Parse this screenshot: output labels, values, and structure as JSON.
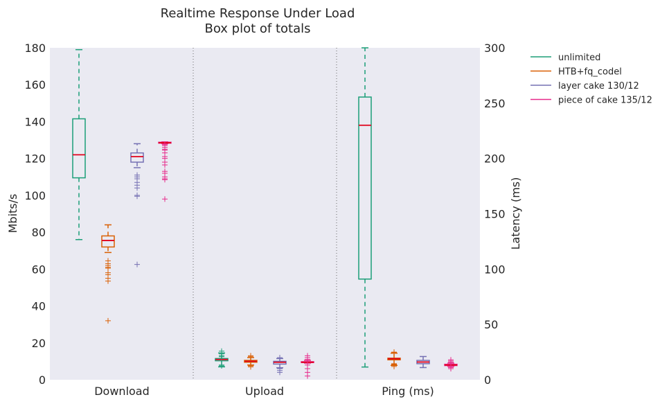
{
  "chart_data": {
    "type": "box",
    "title": "Realtime Response Under Load",
    "subtitle": "Box plot of totals",
    "ylabel_left": "Mbits/s",
    "ylabel_right": "Latency (ms)",
    "ylim_left": [
      0,
      180
    ],
    "ylim_right": [
      0,
      300
    ],
    "yticks_left": [
      0,
      20,
      40,
      60,
      80,
      100,
      120,
      140,
      160,
      180
    ],
    "yticks_right": [
      0,
      50,
      100,
      150,
      200,
      250,
      300
    ],
    "grid": false,
    "legend_position": "outside-right",
    "categories": [
      "Download",
      "Upload",
      "Ping (ms)"
    ],
    "series": [
      {
        "name": "unlimited",
        "color": "#1b9e77",
        "boxes": [
          {
            "category": "Download",
            "axis": "left",
            "whisker_low": 76,
            "q1": 109.5,
            "median": 122,
            "q3": 141.5,
            "whisker_high": 179,
            "outliers": []
          },
          {
            "category": "Upload",
            "axis": "left",
            "whisker_low": 7,
            "q1": 10.3,
            "median": 11,
            "q3": 11.5,
            "whisker_high": 14.5,
            "outliers": [
              15.5,
              14,
              13,
              12.5,
              8,
              7.5
            ]
          },
          {
            "category": "Ping (ms)",
            "axis": "right",
            "whisker_low": 11.5,
            "q1": 91,
            "median": 230,
            "q3": 255.5,
            "whisker_high": 300,
            "outliers": []
          }
        ]
      },
      {
        "name": "HTB+fq_codel",
        "color": "#d95f02",
        "boxes": [
          {
            "category": "Download",
            "axis": "left",
            "whisker_low": 69,
            "q1": 72,
            "median": 75.5,
            "q3": 78,
            "whisker_high": 84,
            "outliers": [
              64.5,
              63,
              62,
              61,
              60.5,
              58,
              57,
              55,
              53.5,
              32
            ]
          },
          {
            "category": "Upload",
            "axis": "left",
            "whisker_low": 8,
            "q1": 9.5,
            "median": 10,
            "q3": 10.5,
            "whisker_high": 12,
            "outliers": [
              13,
              12.5,
              7.5,
              7
            ]
          },
          {
            "category": "Ping (ms)",
            "axis": "right",
            "whisker_low": 13,
            "q1": 18,
            "median": 19,
            "q3": 19.5,
            "whisker_high": 24,
            "outliers": [
              25,
              24.5,
              14.5,
              14,
              13.5,
              12
            ]
          }
        ]
      },
      {
        "name": "layer cake 130/12",
        "color": "#7570b3",
        "boxes": [
          {
            "category": "Download",
            "axis": "left",
            "whisker_low": 115,
            "q1": 118,
            "median": 121,
            "q3": 123,
            "whisker_high": 128,
            "outliers": [
              111,
              110,
              109,
              107,
              105.5,
              104,
              100,
              99.5,
              62.5
            ]
          },
          {
            "category": "Upload",
            "axis": "left",
            "whisker_low": 6.5,
            "q1": 8.5,
            "median": 9.5,
            "q3": 10,
            "whisker_high": 11.5,
            "outliers": [
              12,
              6,
              5,
              4
            ]
          },
          {
            "category": "Ping (ms)",
            "axis": "right",
            "whisker_low": 11,
            "q1": 14.5,
            "median": 16,
            "q3": 17.5,
            "whisker_high": 21,
            "outliers": []
          }
        ]
      },
      {
        "name": "piece of cake 135/12",
        "color": "#e7298a",
        "boxes": [
          {
            "category": "Download",
            "axis": "left",
            "whisker_low": 128,
            "q1": 128.3,
            "median": 128.5,
            "q3": 128.8,
            "whisker_high": 129,
            "outliers": [
              127.5,
              127,
              126,
              125,
              124.5,
              123,
              121,
              120,
              118,
              116.5,
              113,
              112,
              110,
              109,
              108.5,
              98
            ]
          },
          {
            "category": "Upload",
            "axis": "left",
            "whisker_low": 9,
            "q1": 9.3,
            "median": 9.5,
            "q3": 9.8,
            "whisker_high": 10.5,
            "outliers": [
              13,
              12,
              11,
              8,
              6,
              4,
              2
            ]
          },
          {
            "category": "Ping (ms)",
            "axis": "right",
            "whisker_low": 12,
            "q1": 12.8,
            "median": 13.3,
            "q3": 14,
            "whisker_high": 15,
            "outliers": [
              18,
              17,
              16,
              11,
              10
            ]
          }
        ]
      }
    ],
    "median_color": "#e0001a"
  }
}
